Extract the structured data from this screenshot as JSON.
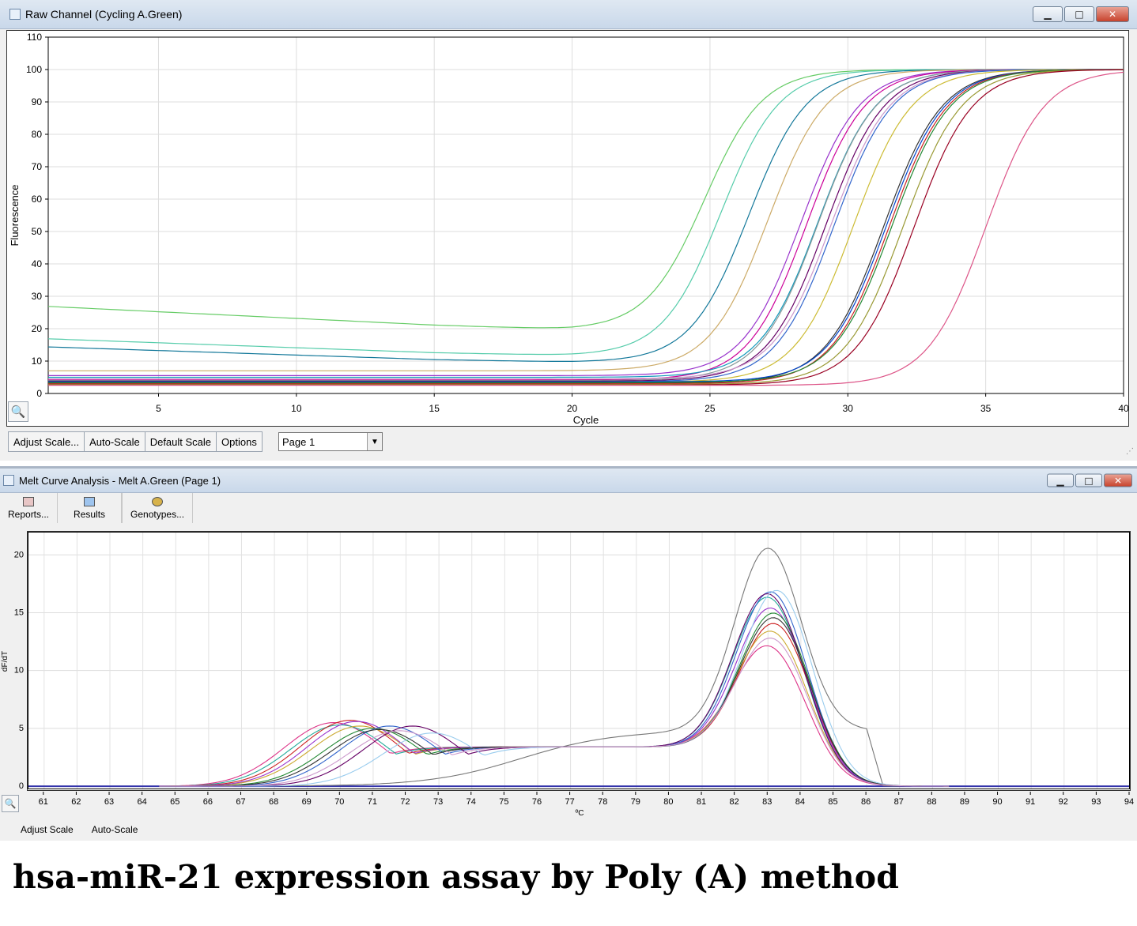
{
  "raw_window": {
    "title": "Raw Channel (Cycling A.Green)",
    "buttons": {
      "adjust_scale": "Adjust Scale...",
      "auto_scale": "Auto-Scale",
      "default_scale": "Default Scale",
      "options": "Options"
    },
    "page_select": "Page 1"
  },
  "melt_window": {
    "title": "Melt Curve Analysis - Melt A.Green (Page 1)",
    "toolbar": {
      "reports": "Reports...",
      "results": "Results",
      "genotypes": "Genotypes..."
    },
    "buttons": {
      "adjust_scale": "Adjust Scale",
      "auto_scale": "Auto-Scale"
    }
  },
  "caption": "hsa-miR-21 expression assay by Poly (A) method",
  "chart_data": [
    {
      "type": "line",
      "xlabel": "Cycle",
      "ylabel": "Fluorescence",
      "xlim": [
        1,
        40
      ],
      "ylim": [
        0,
        110
      ],
      "xticks": [
        5,
        10,
        15,
        20,
        25,
        30,
        35,
        40
      ],
      "yticks": [
        0,
        10,
        20,
        30,
        40,
        50,
        60,
        70,
        80,
        90,
        100,
        110
      ],
      "grid": true,
      "series": [
        {
          "color": "#66cc66",
          "values": {
            "baseline": 21.5,
            "mid": 24.8,
            "plateau": 100
          }
        },
        {
          "color": "#55ccaa",
          "values": {
            "baseline": 13.5,
            "mid": 25.4,
            "plateau": 100
          }
        },
        {
          "color": "#117799",
          "values": {
            "baseline": 11.5,
            "mid": 26.4,
            "plateau": 100
          }
        },
        {
          "color": "#ccaa66",
          "values": {
            "baseline": 7,
            "mid": 27.1,
            "plateau": 100
          }
        },
        {
          "color": "#9933cc",
          "values": {
            "baseline": 5.5,
            "mid": 28.3,
            "plateau": 100
          }
        },
        {
          "color": "#cc0099",
          "values": {
            "baseline": 4.2,
            "mid": 28.5,
            "plateau": 100
          }
        },
        {
          "color": "#1199bb",
          "values": {
            "baseline": 5,
            "mid": 28.9,
            "plateau": 100
          }
        },
        {
          "color": "#889999",
          "values": {
            "baseline": 4,
            "mid": 28.9,
            "plateau": 100
          }
        },
        {
          "color": "#660066",
          "values": {
            "baseline": 3.8,
            "mid": 29.2,
            "plateau": 100
          }
        },
        {
          "color": "#cc99cc",
          "values": {
            "baseline": 4.5,
            "mid": 29.4,
            "plateau": 100
          }
        },
        {
          "color": "#3366cc",
          "values": {
            "baseline": 3.6,
            "mid": 29.5,
            "plateau": 100
          }
        },
        {
          "color": "#ccbb33",
          "values": {
            "baseline": 3.5,
            "mid": 30.2,
            "plateau": 100
          }
        },
        {
          "color": "#333333",
          "values": {
            "baseline": 3.2,
            "mid": 31.3,
            "plateau": 100
          }
        },
        {
          "color": "#0044cc",
          "values": {
            "baseline": 3.6,
            "mid": 31.4,
            "plateau": 100
          }
        },
        {
          "color": "#cc2222",
          "values": {
            "baseline": 3.0,
            "mid": 31.5,
            "plateau": 100
          }
        },
        {
          "color": "#228833",
          "values": {
            "baseline": 3.4,
            "mid": 31.6,
            "plateau": 100
          }
        },
        {
          "color": "#999933",
          "values": {
            "baseline": 2.8,
            "mid": 32.0,
            "plateau": 100
          }
        },
        {
          "color": "#990022",
          "values": {
            "baseline": 2.6,
            "mid": 32.4,
            "plateau": 100
          }
        },
        {
          "color": "#dd5588",
          "values": {
            "baseline": 2.5,
            "mid": 35.0,
            "plateau": 100
          }
        }
      ]
    },
    {
      "type": "line",
      "xlabel": "ºC",
      "ylabel": "dF/dT",
      "xlim": [
        60.5,
        94
      ],
      "ylim": [
        -0.2,
        22
      ],
      "xticks": [
        61,
        62,
        63,
        64,
        65,
        66,
        67,
        68,
        69,
        70,
        71,
        72,
        73,
        74,
        75,
        76,
        77,
        78,
        79,
        80,
        81,
        82,
        83,
        84,
        85,
        86,
        87,
        88,
        89,
        90,
        91,
        92,
        93,
        94
      ],
      "yticks": [
        0,
        5,
        10,
        15,
        20
      ],
      "grid": true,
      "series": [
        {
          "color": "#777777",
          "values": {
            "peak1": 1.2,
            "peak1_temp": 77.5,
            "shoulder": 4.8,
            "peak2": 20.6,
            "peak2_temp": 83
          }
        },
        {
          "color": "#dd3388",
          "values": {
            "peak1": 5.5,
            "peak1_temp": 69.8,
            "peak2": 12.3,
            "peak2_temp": 83
          }
        },
        {
          "color": "#22aa99",
          "values": {
            "peak1": 5.3,
            "peak1_temp": 70.0,
            "peak2": 16.5,
            "peak2_temp": 83
          }
        },
        {
          "color": "#cc2222",
          "values": {
            "peak1": 5.7,
            "peak1_temp": 70.3,
            "peak2": 14.3,
            "peak2_temp": 83.2
          }
        },
        {
          "color": "#ccaa33",
          "values": {
            "peak1": 5.2,
            "peak1_temp": 70.6,
            "peak2": 13.6,
            "peak2_temp": 83.1
          }
        },
        {
          "color": "#9933cc",
          "values": {
            "peak1": 5.6,
            "peak1_temp": 70.5,
            "peak2": 15.6,
            "peak2_temp": 83.1
          }
        },
        {
          "color": "#228833",
          "values": {
            "peak1": 5.0,
            "peak1_temp": 71.0,
            "peak2": 15.2,
            "peak2_temp": 83.2
          }
        },
        {
          "color": "#3366cc",
          "values": {
            "peak1": 5.2,
            "peak1_temp": 71.5,
            "peak2": 17.0,
            "peak2_temp": 83.1
          }
        },
        {
          "color": "#660066",
          "values": {
            "peak1": 5.2,
            "peak1_temp": 72.2,
            "peak2": 16.8,
            "peak2_temp": 83.0
          }
        },
        {
          "color": "#99ccee",
          "values": {
            "peak1": 4.6,
            "peak1_temp": 72.8,
            "peak2": 17.2,
            "peak2_temp": 83.3
          }
        },
        {
          "color": "#333333",
          "values": {
            "peak1": 4.9,
            "peak1_temp": 71.2,
            "peak2": 14.8,
            "peak2_temp": 83.2
          }
        },
        {
          "color": "#cc99cc",
          "values": {
            "peak1": 4.8,
            "peak1_temp": 71.8,
            "peak2": 13.0,
            "peak2_temp": 83.1
          }
        }
      ]
    }
  ]
}
